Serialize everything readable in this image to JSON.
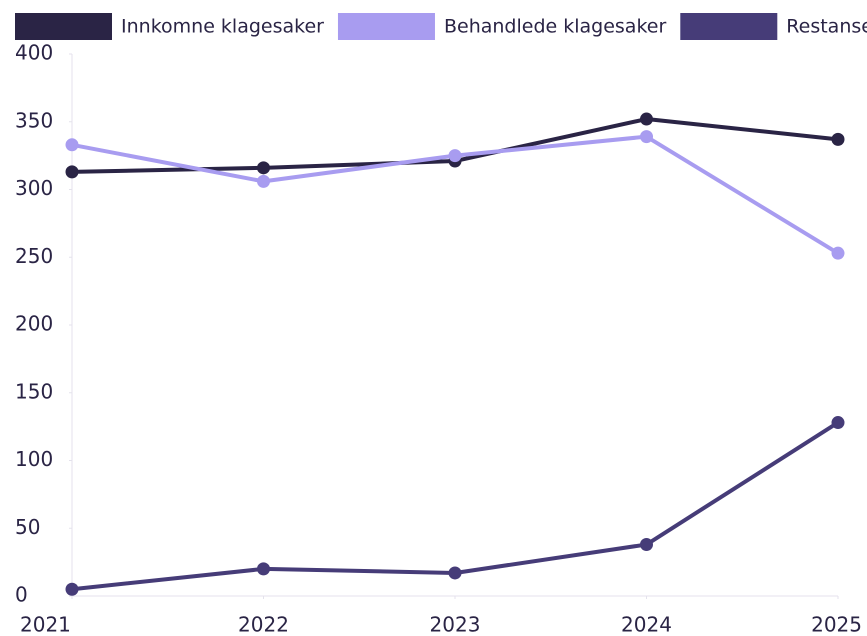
{
  "chart_data": {
    "type": "line",
    "x": [
      2021,
      2022,
      2023,
      2024,
      2025
    ],
    "xlim": [
      2021,
      2025
    ],
    "xticks": [
      2021,
      2022,
      2023,
      2024,
      2025
    ],
    "ylim": [
      0,
      400
    ],
    "yticks": [
      0,
      50,
      100,
      150,
      200,
      250,
      300,
      350,
      400
    ],
    "legend": "top",
    "series": [
      {
        "name": "Innkomne klagesaker",
        "color": "#2a2445",
        "values": [
          313,
          316,
          321,
          352,
          337
        ]
      },
      {
        "name": "Behandlede klagesaker",
        "color": "#a89cf0",
        "values": [
          333,
          306,
          325,
          339,
          253
        ]
      },
      {
        "name": "Restanse",
        "color": "#463c78",
        "values": [
          5,
          20,
          17,
          38,
          128
        ]
      }
    ]
  }
}
